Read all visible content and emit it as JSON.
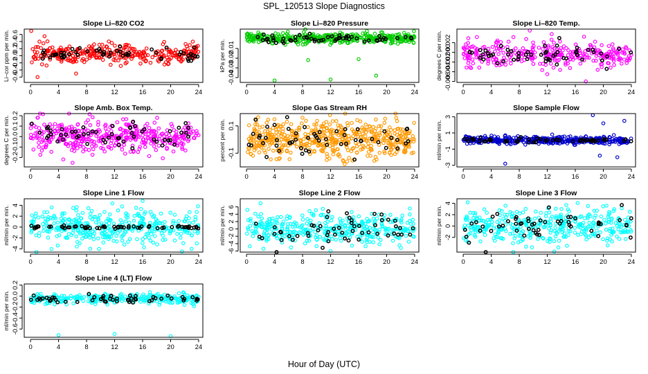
{
  "figure": {
    "title": "SPL_120513  Slope Diagnostics",
    "xlabel": "Hour of Day (UTC)"
  },
  "chart_data": [
    {
      "type": "scatter",
      "title": "Slope Li–820 CO2",
      "ylabel": "Li–cor ppm per min.",
      "color": "#ff0000",
      "ylim": [
        -0.75,
        0.75
      ],
      "yticks": [
        -0.6,
        -0.4,
        -0.2,
        0.0,
        0.2,
        0.4,
        0.6
      ],
      "yticklabels": [
        "-0.6",
        "-0.4",
        "-0.2",
        "0.0",
        "0.2",
        "0.4",
        "0.6"
      ],
      "xlim": [
        -0.9,
        24.6
      ],
      "xticks": [
        0,
        4,
        8,
        12,
        16,
        20,
        24
      ],
      "series": [
        {
          "name": "colored",
          "center": 0.05,
          "spread": 0.13,
          "count": 320,
          "outliers": [
            [
              0.1,
              0.7
            ],
            [
              1,
              -0.6
            ],
            [
              2,
              0.55
            ],
            [
              6.5,
              -0.5
            ]
          ]
        },
        {
          "name": "black",
          "center": 0.05,
          "spread": 0.1,
          "count": 55
        }
      ]
    },
    {
      "type": "scatter",
      "title": "Slope Li–820 Pressure",
      "ylabel": "kPa per min.",
      "color": "#00cc00",
      "ylim": [
        -0.045,
        0.01
      ],
      "yticks": [
        -0.04,
        -0.03,
        -0.02,
        -0.01
      ],
      "yticklabels": [
        "-0.04",
        "-0.03",
        "-0.02",
        "-0.01"
      ],
      "xlim": [
        -0.9,
        24.6
      ],
      "xticks": [
        0,
        4,
        8,
        12,
        16,
        20,
        24
      ],
      "series": [
        {
          "name": "colored",
          "center": 0.0005,
          "spread": 0.0025,
          "count": 380,
          "outliers": [
            [
              4,
              -0.043
            ],
            [
              8.8,
              -0.022
            ],
            [
              16,
              -0.021
            ],
            [
              18.5,
              -0.038
            ],
            [
              12,
              -0.042
            ]
          ]
        },
        {
          "name": "black",
          "center": 0.0,
          "spread": 0.002,
          "count": 55
        }
      ]
    },
    {
      "type": "scatter",
      "title": "Slope Li–820 Temp.",
      "ylabel": "degrees C per min.",
      "color": "#ff00ff",
      "ylim": [
        -0.0062,
        0.0048
      ],
      "yticks": [
        -0.006,
        -0.004,
        -0.002,
        0.0,
        0.002
      ],
      "yticklabels": [
        "-0.006",
        "-0.004",
        "-0.002",
        "0.000",
        "0.002"
      ],
      "xlim": [
        -0.9,
        24.6
      ],
      "xticks": [
        0,
        4,
        8,
        12,
        16,
        20,
        24
      ],
      "series": [
        {
          "name": "colored",
          "center": -0.0003,
          "spread": 0.0013,
          "count": 320,
          "outliers": [
            [
              9.5,
              0.0045
            ],
            [
              17.5,
              -0.006
            ],
            [
              12,
              -0.0045
            ]
          ]
        },
        {
          "name": "black",
          "center": -0.0005,
          "spread": 0.001,
          "count": 55
        }
      ]
    },
    {
      "type": "scatter",
      "title": "Slope Amb. Box Temp.",
      "ylabel": "degrees C per min.",
      "color": "#ff00ff",
      "ylim": [
        -0.29,
        0.22
      ],
      "yticks": [
        -0.2,
        -0.1,
        0.0,
        0.1,
        0.2
      ],
      "yticklabels": [
        "-0.2",
        "-0.1",
        "0.0",
        "0.1",
        "0.2"
      ],
      "xlim": [
        -0.9,
        24.6
      ],
      "xticks": [
        0,
        4,
        8,
        12,
        16,
        20,
        24
      ],
      "series": [
        {
          "name": "colored",
          "center": 0.0,
          "spread": 0.08,
          "count": 420,
          "outliers": [
            [
              1,
              0.18
            ],
            [
              6,
              -0.25
            ]
          ]
        },
        {
          "name": "black",
          "center": 0.0,
          "spread": 0.06,
          "count": 55
        }
      ]
    },
    {
      "type": "scatter",
      "title": "Slope Gas Stream RH",
      "ylabel": "percent per min.",
      "color": "#ff9900",
      "ylim": [
        -0.2,
        0.19
      ],
      "yticks": [
        -0.1,
        0.1
      ],
      "yticklabels": [
        "-0.1",
        "0.1"
      ],
      "xlim": [
        -0.9,
        24.6
      ],
      "xticks": [
        0,
        4,
        8,
        12,
        16,
        20,
        24
      ],
      "series": [
        {
          "name": "colored",
          "center": 0.0,
          "spread": 0.065,
          "count": 520,
          "outliers": [
            [
              8,
              0.16
            ],
            [
              14,
              -0.18
            ]
          ]
        },
        {
          "name": "black",
          "center": 0.0,
          "spread": 0.06,
          "count": 55
        }
      ]
    },
    {
      "type": "scatter",
      "title": "Slope Sample Flow",
      "ylabel": "ml/min per min.",
      "color": "#0000cc",
      "ylim": [
        -3.2,
        3.4
      ],
      "yticks": [
        -3,
        -1,
        1,
        3
      ],
      "yticklabels": [
        "-3",
        "-1",
        "1",
        "3"
      ],
      "xlim": [
        -0.9,
        24.6
      ],
      "xticks": [
        0,
        4,
        8,
        12,
        16,
        20,
        24
      ],
      "series": [
        {
          "name": "colored",
          "center": 0.1,
          "spread": 0.22,
          "count": 420,
          "outliers": [
            [
              6,
              -2.8
            ],
            [
              18.5,
              3.2
            ],
            [
              19.5,
              -1.8
            ],
            [
              20,
              2.2
            ],
            [
              23,
              2.5
            ],
            [
              22,
              -2.0
            ]
          ]
        },
        {
          "name": "black",
          "center": 0.1,
          "spread": 0.15,
          "count": 55
        }
      ]
    },
    {
      "type": "scatter",
      "title": "Slope Line 1 Flow",
      "ylabel": "ml/min per min.",
      "color": "#00ffff",
      "ylim": [
        -4.6,
        5.2
      ],
      "yticks": [
        -4,
        -2,
        0,
        2,
        4
      ],
      "yticklabels": [
        "-4",
        "-2",
        "0",
        "2",
        "4"
      ],
      "xlim": [
        -0.9,
        24.6
      ],
      "xticks": [
        0,
        4,
        8,
        12,
        16,
        20,
        24
      ],
      "series": [
        {
          "name": "colored",
          "center": 0.0,
          "spread": 1.6,
          "count": 380,
          "outliers": [
            [
              16,
              4.8
            ],
            [
              23,
              -4
            ]
          ]
        },
        {
          "name": "black",
          "center": 0.0,
          "spread": 0.15,
          "count": 60
        }
      ]
    },
    {
      "type": "scatter",
      "title": "Slope Line 2 Flow",
      "ylabel": "ml/min per min.",
      "color": "#00ffff",
      "ylim": [
        -6.3,
        8.2
      ],
      "yticks": [
        -6,
        -4,
        -2,
        0,
        2,
        4,
        6
      ],
      "yticklabels": [
        "-6",
        "-4",
        "-2",
        "0",
        "2",
        "4",
        "6"
      ],
      "xlim": [
        -0.9,
        24.6
      ],
      "xticks": [
        0,
        4,
        8,
        12,
        16,
        20,
        24
      ],
      "series": [
        {
          "name": "colored",
          "center": 0.0,
          "spread": 2.0,
          "count": 380,
          "outliers": [
            [
              2,
              7
            ],
            [
              12,
              -6
            ]
          ]
        },
        {
          "name": "black",
          "center": 0.0,
          "spread": 2.2,
          "count": 55
        }
      ]
    },
    {
      "type": "scatter",
      "title": "Slope Line 3 Flow",
      "ylabel": "ml/min per min.",
      "color": "#00ffff",
      "ylim": [
        -4.6,
        4.8
      ],
      "yticks": [
        -2,
        0,
        2,
        4
      ],
      "yticklabels": [
        "-2",
        "0",
        "2",
        "4"
      ],
      "xlim": [
        -0.9,
        24.6
      ],
      "xticks": [
        0,
        4,
        8,
        12,
        16,
        20,
        24
      ],
      "series": [
        {
          "name": "colored",
          "center": 0.0,
          "spread": 1.5,
          "count": 380,
          "outliers": [
            [
              13,
              -4.5
            ]
          ]
        },
        {
          "name": "black",
          "center": 0.0,
          "spread": 1.5,
          "count": 55
        }
      ]
    },
    {
      "type": "scatter",
      "title": "Slope Line 4 (LT) Flow",
      "ylabel": "ml/min per min.",
      "color": "#00ffff",
      "ylim": [
        -0.75,
        0.22
      ],
      "yticks": [
        -0.6,
        -0.4,
        -0.2,
        0.0,
        0.2
      ],
      "yticklabels": [
        "-0.6",
        "-0.4",
        "-0.2",
        "0.0",
        "0.2"
      ],
      "xlim": [
        -0.9,
        24.6
      ],
      "xticks": [
        0,
        4,
        8,
        12,
        16,
        20,
        24
      ],
      "series": [
        {
          "name": "colored",
          "center": -0.05,
          "spread": 0.045,
          "count": 300,
          "outliers": [
            [
              4,
              -0.71
            ],
            [
              12,
              -0.69
            ],
            [
              20,
              -0.73
            ]
          ]
        },
        {
          "name": "black",
          "center": -0.05,
          "spread": 0.04,
          "count": 55
        }
      ]
    }
  ]
}
